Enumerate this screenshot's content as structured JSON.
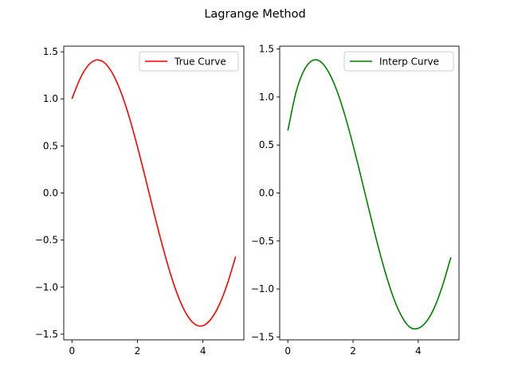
{
  "figure": {
    "title": "Lagrange Method"
  },
  "chart_data": [
    {
      "type": "line",
      "title": "",
      "xlabel": "",
      "ylabel": "",
      "xlim": [
        -0.25,
        5.25
      ],
      "ylim": [
        -1.56,
        1.56
      ],
      "xticks": [
        0,
        2,
        4
      ],
      "yticks": [
        1.5,
        1.0,
        0.5,
        0.0,
        -0.5,
        -1.0,
        -1.5
      ],
      "xtick_labels": [
        "0",
        "2",
        "4"
      ],
      "ytick_labels": [
        "1.5",
        "1.0",
        "0.5",
        "0.0",
        "−0.5",
        "−1.0",
        "−1.5"
      ],
      "legend": "upper-right",
      "grid": false,
      "series": [
        {
          "name": "True Curve",
          "color": "#ff0000",
          "x": [
            0.0,
            0.25,
            0.5,
            0.75,
            1.0,
            1.25,
            1.5,
            1.75,
            2.0,
            2.25,
            2.5,
            2.75,
            3.0,
            3.25,
            3.5,
            3.75,
            4.0,
            4.25,
            4.5,
            4.75,
            5.0
          ],
          "y": [
            1.0,
            1.216,
            1.357,
            1.413,
            1.382,
            1.264,
            1.068,
            0.806,
            0.493,
            0.15,
            -0.203,
            -0.542,
            -0.849,
            -1.103,
            -1.288,
            -1.393,
            -1.41,
            -1.338,
            -1.188,
            -0.962,
            -0.675
          ]
        }
      ]
    },
    {
      "type": "line",
      "title": "",
      "xlabel": "",
      "ylabel": "",
      "xlim": [
        -0.25,
        5.25
      ],
      "ylim": [
        -1.53,
        1.53
      ],
      "xticks": [
        0,
        2,
        4
      ],
      "yticks": [
        1.5,
        1.0,
        0.5,
        0.0,
        -0.5,
        -1.0,
        -1.5
      ],
      "xtick_labels": [
        "0",
        "2",
        "4"
      ],
      "ytick_labels": [
        "1.5",
        "1.0",
        "0.5",
        "0.0",
        "−0.5",
        "−1.0",
        "−1.5"
      ],
      "legend": "upper-right",
      "grid": false,
      "series": [
        {
          "name": "Interp Curve",
          "color": "#008000",
          "x": [
            0.0,
            0.25,
            0.5,
            0.75,
            1.0,
            1.25,
            1.5,
            1.75,
            2.0,
            2.25,
            2.5,
            2.75,
            3.0,
            3.25,
            3.5,
            3.75,
            4.0,
            4.25,
            4.5,
            4.75,
            5.0
          ],
          "y": [
            0.65,
            1.05,
            1.28,
            1.38,
            1.37,
            1.26,
            1.07,
            0.81,
            0.5,
            0.16,
            -0.19,
            -0.53,
            -0.84,
            -1.1,
            -1.29,
            -1.4,
            -1.41,
            -1.34,
            -1.19,
            -0.96,
            -0.67
          ]
        }
      ]
    }
  ]
}
